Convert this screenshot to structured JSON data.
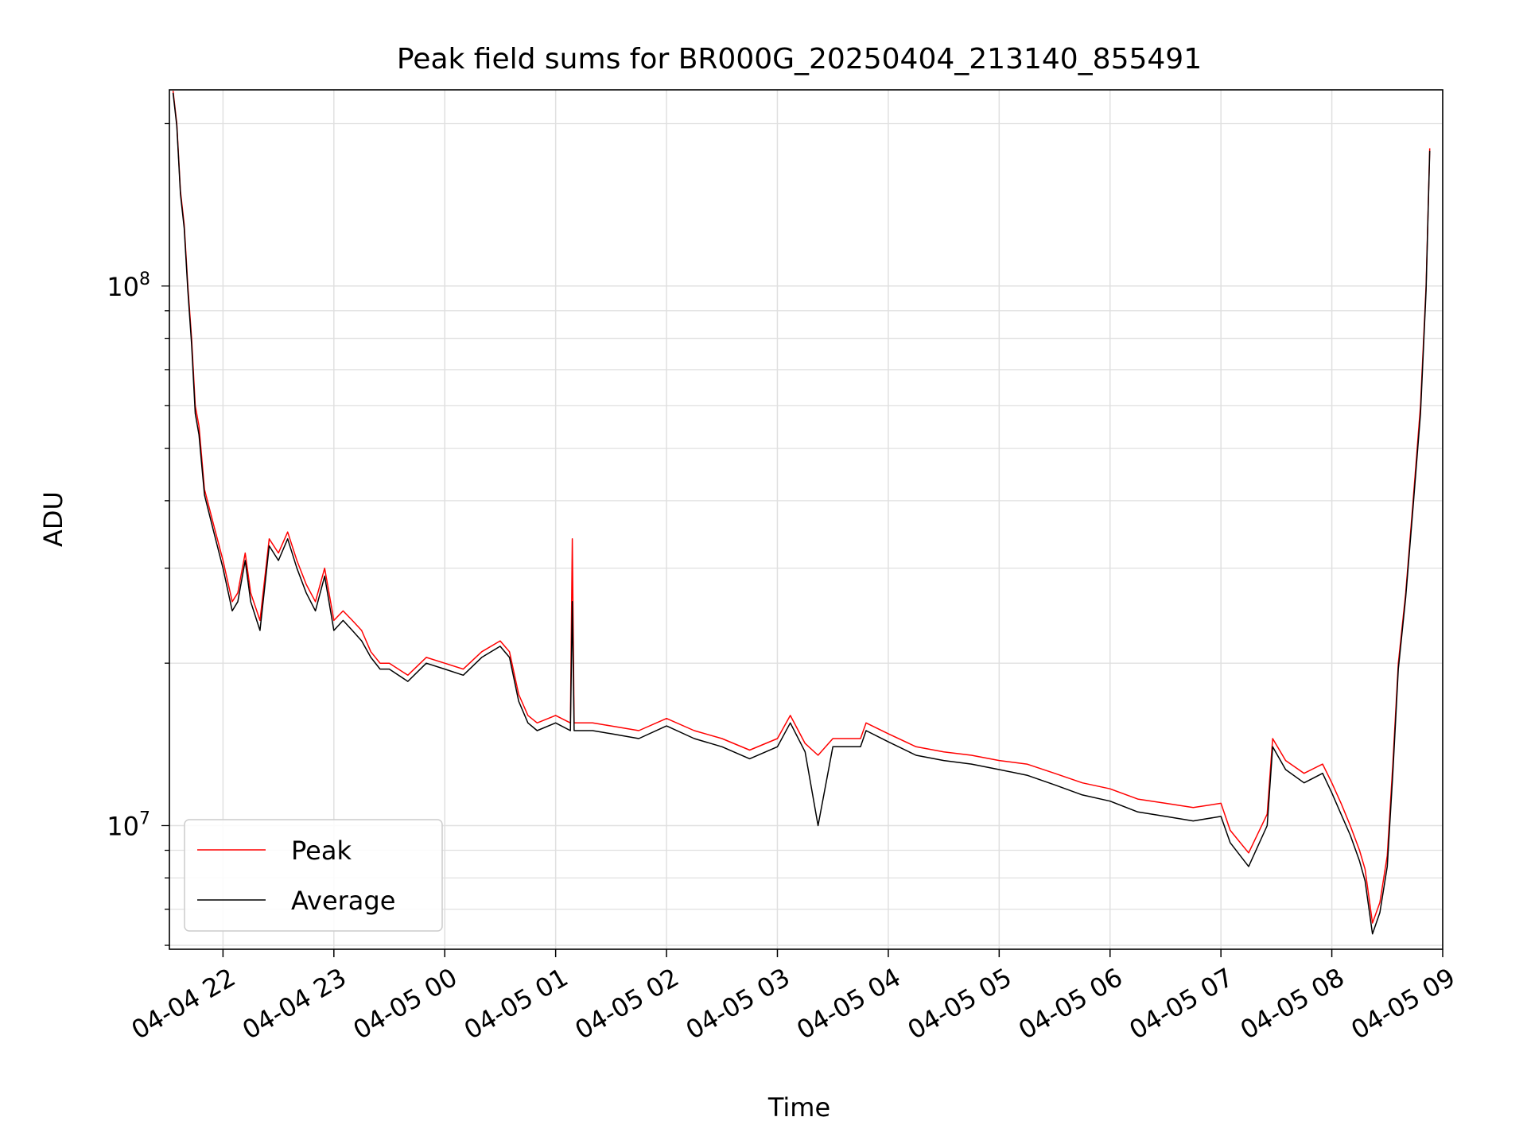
{
  "chart_data": {
    "type": "line",
    "title": "Peak field sums for BR000G_20250404_213140_855491",
    "xlabel": "Time",
    "ylabel": "ADU",
    "yscale": "log",
    "grid": true,
    "legend_position": "lower-left",
    "xlim": [
      "2025-04-04 21:31",
      "2025-04-05 09:00"
    ],
    "ylim": [
      5900000,
      231000000
    ],
    "x_ticks": [
      "2025-04-04 22:00",
      "2025-04-04 23:00",
      "2025-04-05 00:00",
      "2025-04-05 01:00",
      "2025-04-05 02:00",
      "2025-04-05 03:00",
      "2025-04-05 04:00",
      "2025-04-05 05:00",
      "2025-04-05 06:00",
      "2025-04-05 07:00",
      "2025-04-05 08:00",
      "2025-04-05 09:00"
    ],
    "x_tick_labels": [
      "04-04 22",
      "04-04 23",
      "04-05 00",
      "04-05 01",
      "04-05 02",
      "04-05 03",
      "04-05 04",
      "04-05 05",
      "04-05 06",
      "04-05 07",
      "04-05 08",
      "04-05 09"
    ],
    "y_ticks": [
      10000000,
      100000000
    ],
    "y_tick_labels": [
      {
        "base": "10",
        "exp": "7"
      },
      {
        "base": "10",
        "exp": "8"
      }
    ],
    "series": [
      {
        "name": "Peak",
        "color": "#ff0000",
        "x": [
          "2025-04-04 21:33",
          "2025-04-04 21:35",
          "2025-04-04 21:37",
          "2025-04-04 21:39",
          "2025-04-04 21:41",
          "2025-04-04 21:43",
          "2025-04-04 21:45",
          "2025-04-04 21:47",
          "2025-04-04 21:50",
          "2025-04-04 21:55",
          "2025-04-04 22:00",
          "2025-04-04 22:05",
          "2025-04-04 22:08",
          "2025-04-04 22:12",
          "2025-04-04 22:15",
          "2025-04-04 22:20",
          "2025-04-04 22:25",
          "2025-04-04 22:30",
          "2025-04-04 22:35",
          "2025-04-04 22:40",
          "2025-04-04 22:45",
          "2025-04-04 22:50",
          "2025-04-04 22:55",
          "2025-04-04 23:00",
          "2025-04-04 23:05",
          "2025-04-04 23:10",
          "2025-04-04 23:15",
          "2025-04-04 23:20",
          "2025-04-04 23:25",
          "2025-04-04 23:30",
          "2025-04-04 23:40",
          "2025-04-04 23:50",
          "2025-04-05 00:00",
          "2025-04-05 00:10",
          "2025-04-05 00:20",
          "2025-04-05 00:30",
          "2025-04-05 00:35",
          "2025-04-05 00:40",
          "2025-04-05 00:45",
          "2025-04-05 00:50",
          "2025-04-05 01:00",
          "2025-04-05 01:08",
          "2025-04-05 01:09",
          "2025-04-05 01:10",
          "2025-04-05 01:20",
          "2025-04-05 01:30",
          "2025-04-05 01:45",
          "2025-04-05 02:00",
          "2025-04-05 02:15",
          "2025-04-05 02:30",
          "2025-04-05 02:45",
          "2025-04-05 03:00",
          "2025-04-05 03:07",
          "2025-04-05 03:15",
          "2025-04-05 03:22",
          "2025-04-05 03:30",
          "2025-04-05 03:45",
          "2025-04-05 03:48",
          "2025-04-05 04:00",
          "2025-04-05 04:15",
          "2025-04-05 04:30",
          "2025-04-05 04:45",
          "2025-04-05 05:00",
          "2025-04-05 05:15",
          "2025-04-05 05:30",
          "2025-04-05 05:45",
          "2025-04-05 06:00",
          "2025-04-05 06:15",
          "2025-04-05 06:30",
          "2025-04-05 06:45",
          "2025-04-05 07:00",
          "2025-04-05 07:05",
          "2025-04-05 07:15",
          "2025-04-05 07:25",
          "2025-04-05 07:28",
          "2025-04-05 07:35",
          "2025-04-05 07:45",
          "2025-04-05 07:55",
          "2025-04-05 08:00",
          "2025-04-05 08:05",
          "2025-04-05 08:10",
          "2025-04-05 08:15",
          "2025-04-05 08:18",
          "2025-04-05 08:22",
          "2025-04-05 08:26",
          "2025-04-05 08:30",
          "2025-04-05 08:33",
          "2025-04-05 08:36",
          "2025-04-05 08:40",
          "2025-04-05 08:44",
          "2025-04-05 08:48",
          "2025-04-05 08:51",
          "2025-04-05 08:53"
        ],
        "values": [
          230000000,
          200000000,
          150000000,
          130000000,
          100000000,
          80000000,
          60000000,
          55000000,
          42000000,
          36000000,
          31000000,
          26000000,
          27000000,
          32000000,
          27000000,
          24000000,
          34000000,
          32000000,
          35000000,
          31000000,
          28000000,
          26000000,
          30000000,
          24000000,
          25000000,
          24000000,
          23000000,
          21000000,
          20000000,
          20000000,
          19000000,
          20500000,
          20000000,
          19500000,
          21000000,
          22000000,
          21000000,
          17500000,
          16000000,
          15500000,
          16000000,
          15500000,
          34000000,
          15500000,
          15500000,
          15300000,
          15000000,
          15800000,
          15000000,
          14500000,
          13800000,
          14500000,
          16000000,
          14200000,
          13500000,
          14500000,
          14500000,
          15500000,
          14800000,
          14000000,
          13700000,
          13500000,
          13200000,
          13000000,
          12500000,
          12000000,
          11700000,
          11200000,
          11000000,
          10800000,
          11000000,
          9800000,
          8900000,
          10500000,
          14500000,
          13200000,
          12500000,
          13000000,
          12000000,
          11000000,
          10000000,
          9000000,
          8300000,
          6600000,
          7200000,
          8800000,
          13000000,
          20000000,
          27000000,
          40000000,
          60000000,
          100000000,
          180000000
        ]
      },
      {
        "name": "Average",
        "color": "#000000",
        "x": [
          "2025-04-04 21:33",
          "2025-04-04 21:35",
          "2025-04-04 21:37",
          "2025-04-04 21:39",
          "2025-04-04 21:41",
          "2025-04-04 21:43",
          "2025-04-04 21:45",
          "2025-04-04 21:47",
          "2025-04-04 21:50",
          "2025-04-04 21:55",
          "2025-04-04 22:00",
          "2025-04-04 22:05",
          "2025-04-04 22:08",
          "2025-04-04 22:12",
          "2025-04-04 22:15",
          "2025-04-04 22:20",
          "2025-04-04 22:25",
          "2025-04-04 22:30",
          "2025-04-04 22:35",
          "2025-04-04 22:40",
          "2025-04-04 22:45",
          "2025-04-04 22:50",
          "2025-04-04 22:55",
          "2025-04-04 23:00",
          "2025-04-04 23:05",
          "2025-04-04 23:10",
          "2025-04-04 23:15",
          "2025-04-04 23:20",
          "2025-04-04 23:25",
          "2025-04-04 23:30",
          "2025-04-04 23:40",
          "2025-04-04 23:50",
          "2025-04-05 00:00",
          "2025-04-05 00:10",
          "2025-04-05 00:20",
          "2025-04-05 00:30",
          "2025-04-05 00:35",
          "2025-04-05 00:40",
          "2025-04-05 00:45",
          "2025-04-05 00:50",
          "2025-04-05 01:00",
          "2025-04-05 01:08",
          "2025-04-05 01:09",
          "2025-04-05 01:10",
          "2025-04-05 01:20",
          "2025-04-05 01:30",
          "2025-04-05 01:45",
          "2025-04-05 02:00",
          "2025-04-05 02:15",
          "2025-04-05 02:30",
          "2025-04-05 02:45",
          "2025-04-05 03:00",
          "2025-04-05 03:07",
          "2025-04-05 03:15",
          "2025-04-05 03:22",
          "2025-04-05 03:30",
          "2025-04-05 03:45",
          "2025-04-05 03:48",
          "2025-04-05 04:00",
          "2025-04-05 04:15",
          "2025-04-05 04:30",
          "2025-04-05 04:45",
          "2025-04-05 05:00",
          "2025-04-05 05:15",
          "2025-04-05 05:30",
          "2025-04-05 05:45",
          "2025-04-05 06:00",
          "2025-04-05 06:15",
          "2025-04-05 06:30",
          "2025-04-05 06:45",
          "2025-04-05 07:00",
          "2025-04-05 07:05",
          "2025-04-05 07:15",
          "2025-04-05 07:25",
          "2025-04-05 07:28",
          "2025-04-05 07:35",
          "2025-04-05 07:45",
          "2025-04-05 07:55",
          "2025-04-05 08:00",
          "2025-04-05 08:05",
          "2025-04-05 08:10",
          "2025-04-05 08:15",
          "2025-04-05 08:18",
          "2025-04-05 08:22",
          "2025-04-05 08:26",
          "2025-04-05 08:30",
          "2025-04-05 08:33",
          "2025-04-05 08:36",
          "2025-04-05 08:40",
          "2025-04-05 08:44",
          "2025-04-05 08:48",
          "2025-04-05 08:51",
          "2025-04-05 08:53"
        ],
        "values": [
          228000000,
          198000000,
          148000000,
          128000000,
          98000000,
          78000000,
          58000000,
          53000000,
          41000000,
          35000000,
          30000000,
          25000000,
          26000000,
          31000000,
          26000000,
          23000000,
          33000000,
          31000000,
          34000000,
          30000000,
          27000000,
          25000000,
          29000000,
          23000000,
          24000000,
          23000000,
          22000000,
          20500000,
          19500000,
          19500000,
          18500000,
          20000000,
          19500000,
          19000000,
          20500000,
          21500000,
          20500000,
          17000000,
          15500000,
          15000000,
          15500000,
          15000000,
          26000000,
          15000000,
          15000000,
          14800000,
          14500000,
          15300000,
          14500000,
          14000000,
          13300000,
          14000000,
          15500000,
          13700000,
          10000000,
          14000000,
          14000000,
          15000000,
          14300000,
          13500000,
          13200000,
          13000000,
          12700000,
          12400000,
          11900000,
          11400000,
          11100000,
          10600000,
          10400000,
          10200000,
          10400000,
          9300000,
          8400000,
          10000000,
          14000000,
          12700000,
          12000000,
          12500000,
          11500000,
          10500000,
          9600000,
          8600000,
          7900000,
          6300000,
          6900000,
          8400000,
          12500000,
          19500000,
          26500000,
          39000000,
          58000000,
          98000000,
          178000000
        ]
      }
    ]
  }
}
